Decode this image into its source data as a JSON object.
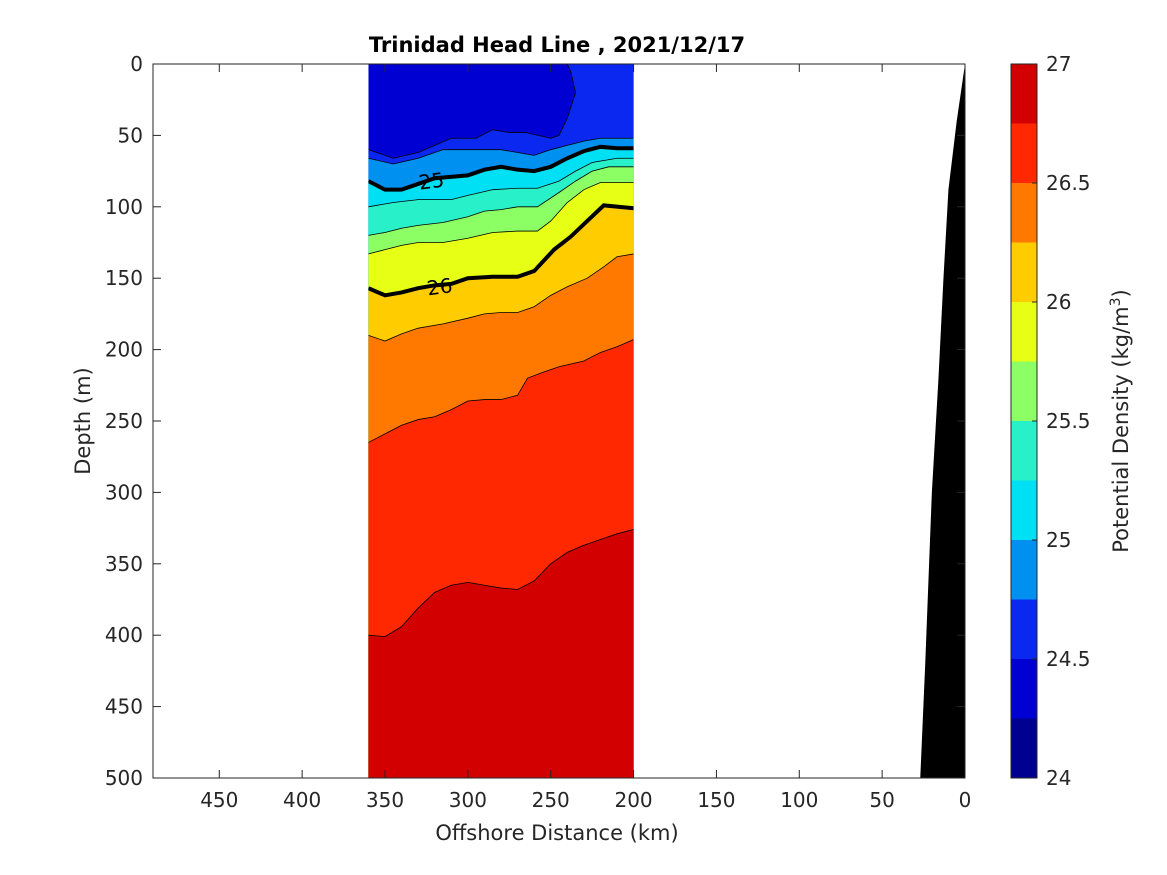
{
  "chart_data": {
    "type": "contour",
    "title": "Trinidad Head Line , 2021/12/17",
    "xlabel": "Offshore Distance (km)",
    "ylabel": "Depth (m)",
    "colorbar_label_main": "Potential Density (kg/m",
    "colorbar_label_sup": "3",
    "colorbar_label_end": ")",
    "xlim": [
      490,
      0
    ],
    "ylim": [
      0,
      500
    ],
    "x_reversed": true,
    "y_reversed": true,
    "x_ticks": [
      450,
      400,
      350,
      300,
      250,
      200,
      150,
      100,
      50,
      0
    ],
    "y_ticks": [
      0,
      50,
      100,
      150,
      200,
      250,
      300,
      350,
      400,
      450,
      500
    ],
    "data_xrange": [
      360,
      200
    ],
    "colorbar_range": [
      24,
      27
    ],
    "colorbar_ticks": [
      24,
      24.5,
      25,
      25.5,
      26,
      26.5,
      27
    ],
    "colorbar_colors": [
      "#000090",
      "#0000d2",
      "#0a28f0",
      "#0090f0",
      "#00e0f5",
      "#28f0c8",
      "#8cff64",
      "#e6ff14",
      "#ffcc00",
      "#ff7800",
      "#ff2800",
      "#d20000"
    ],
    "levels_step": 0.25,
    "fill_colors": [
      "#0000d2",
      "#0a28f0",
      "#0090f0",
      "#00e0f5",
      "#28f0c8",
      "#8cff64",
      "#e6ff14",
      "#ffcc00",
      "#ff7800",
      "#ff2800",
      "#d20000"
    ],
    "contour_lines": [
      {
        "level": 24.5,
        "points": [
          [
            360,
            60
          ],
          [
            345,
            66
          ],
          [
            330,
            62
          ],
          [
            310,
            52
          ],
          [
            295,
            52
          ],
          [
            285,
            46
          ],
          [
            275,
            48
          ],
          [
            265,
            48
          ],
          [
            250,
            52
          ],
          [
            245,
            50
          ],
          [
            240,
            38
          ],
          [
            235,
            20
          ],
          [
            238,
            5
          ],
          [
            240,
            0
          ]
        ]
      },
      {
        "level": 24.75,
        "points": [
          [
            360,
            66
          ],
          [
            345,
            70
          ],
          [
            330,
            66
          ],
          [
            315,
            60
          ],
          [
            295,
            60
          ],
          [
            280,
            60
          ],
          [
            270,
            62
          ],
          [
            260,
            64
          ],
          [
            250,
            60
          ],
          [
            240,
            57
          ],
          [
            230,
            54
          ],
          [
            220,
            52
          ],
          [
            200,
            52
          ]
        ]
      },
      {
        "level": 25.0,
        "points": [
          [
            360,
            82
          ],
          [
            350,
            88
          ],
          [
            340,
            88
          ],
          [
            330,
            84
          ],
          [
            320,
            80
          ],
          [
            300,
            78
          ],
          [
            290,
            74
          ],
          [
            280,
            72
          ],
          [
            270,
            74
          ],
          [
            260,
            75
          ],
          [
            250,
            72
          ],
          [
            240,
            66
          ],
          [
            230,
            61
          ],
          [
            220,
            58
          ],
          [
            210,
            59
          ],
          [
            200,
            59
          ]
        ]
      },
      {
        "level": 25.25,
        "points": [
          [
            360,
            100
          ],
          [
            345,
            97
          ],
          [
            330,
            95
          ],
          [
            310,
            95
          ],
          [
            300,
            92
          ],
          [
            285,
            88
          ],
          [
            270,
            87
          ],
          [
            258,
            87
          ],
          [
            245,
            82
          ],
          [
            235,
            75
          ],
          [
            225,
            69
          ],
          [
            210,
            66
          ],
          [
            200,
            66
          ]
        ]
      },
      {
        "level": 25.5,
        "points": [
          [
            360,
            120
          ],
          [
            350,
            118
          ],
          [
            340,
            115
          ],
          [
            330,
            113
          ],
          [
            315,
            111
          ],
          [
            300,
            107
          ],
          [
            290,
            103
          ],
          [
            280,
            102
          ],
          [
            270,
            100
          ],
          [
            258,
            100
          ],
          [
            245,
            90
          ],
          [
            235,
            82
          ],
          [
            225,
            75
          ],
          [
            215,
            72
          ],
          [
            200,
            72
          ]
        ]
      },
      {
        "level": 25.75,
        "points": [
          [
            360,
            133
          ],
          [
            350,
            130
          ],
          [
            340,
            127
          ],
          [
            330,
            125
          ],
          [
            315,
            125
          ],
          [
            300,
            122
          ],
          [
            285,
            118
          ],
          [
            270,
            117
          ],
          [
            258,
            117
          ],
          [
            250,
            110
          ],
          [
            240,
            97
          ],
          [
            230,
            88
          ],
          [
            220,
            83
          ],
          [
            200,
            83
          ]
        ]
      },
      {
        "level": 26.0,
        "points": [
          [
            360,
            157
          ],
          [
            350,
            162
          ],
          [
            340,
            160
          ],
          [
            330,
            157
          ],
          [
            320,
            155
          ],
          [
            310,
            154
          ],
          [
            300,
            150
          ],
          [
            285,
            149
          ],
          [
            270,
            149
          ],
          [
            260,
            145
          ],
          [
            248,
            130
          ],
          [
            238,
            121
          ],
          [
            228,
            110
          ],
          [
            218,
            99
          ],
          [
            200,
            101
          ]
        ]
      },
      {
        "level": 26.25,
        "points": [
          [
            360,
            190
          ],
          [
            350,
            194
          ],
          [
            340,
            189
          ],
          [
            330,
            185
          ],
          [
            315,
            182
          ],
          [
            300,
            178
          ],
          [
            290,
            175
          ],
          [
            280,
            174
          ],
          [
            270,
            174
          ],
          [
            260,
            170
          ],
          [
            250,
            162
          ],
          [
            240,
            156
          ],
          [
            228,
            150
          ],
          [
            218,
            142
          ],
          [
            210,
            135
          ],
          [
            200,
            133
          ]
        ]
      },
      {
        "level": 26.5,
        "points": [
          [
            360,
            265
          ],
          [
            350,
            259
          ],
          [
            340,
            253
          ],
          [
            330,
            249
          ],
          [
            320,
            247
          ],
          [
            310,
            242
          ],
          [
            300,
            236
          ],
          [
            290,
            235
          ],
          [
            280,
            235
          ],
          [
            270,
            232
          ],
          [
            264,
            220
          ],
          [
            255,
            216
          ],
          [
            245,
            212
          ],
          [
            230,
            208
          ],
          [
            220,
            202
          ],
          [
            210,
            198
          ],
          [
            200,
            193
          ]
        ]
      },
      {
        "level": 26.75,
        "points": [
          [
            360,
            400
          ],
          [
            350,
            401
          ],
          [
            340,
            394
          ],
          [
            330,
            381
          ],
          [
            320,
            370
          ],
          [
            310,
            365
          ],
          [
            300,
            363
          ],
          [
            290,
            365
          ],
          [
            280,
            367
          ],
          [
            270,
            368
          ],
          [
            260,
            362
          ],
          [
            250,
            350
          ],
          [
            240,
            342
          ],
          [
            230,
            337
          ],
          [
            220,
            333
          ],
          [
            210,
            329
          ],
          [
            200,
            326
          ]
        ]
      }
    ],
    "bold_contours": [
      {
        "level": 25,
        "label": "25",
        "label_pos": [
          322,
          82
        ],
        "label_angle": -7
      },
      {
        "level": 26,
        "label": "26",
        "label_pos": [
          317,
          156
        ],
        "label_angle": -8
      }
    ],
    "bathymetry": {
      "color": "#000000",
      "points": [
        [
          0,
          0
        ],
        [
          5,
          40
        ],
        [
          10,
          88
        ],
        [
          13,
          150
        ],
        [
          16,
          220
        ],
        [
          20,
          300
        ],
        [
          24,
          420
        ],
        [
          27,
          500
        ],
        [
          0,
          500
        ]
      ]
    }
  }
}
